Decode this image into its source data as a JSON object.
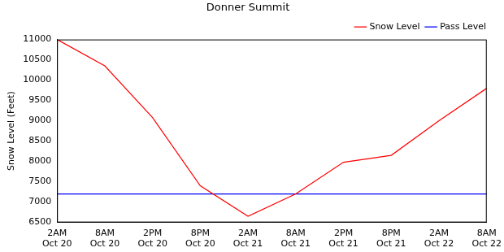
{
  "chart_data": {
    "type": "line",
    "title": "Donner Summit",
    "y_label": "Snow Level (Feet)",
    "categories": [
      "2AM\nOct 20",
      "8AM\nOct 20",
      "2PM\nOct 20",
      "8PM\nOct 20",
      "2AM\nOct 21",
      "8AM\nOct 21",
      "2PM\nOct 21",
      "8PM\nOct 21",
      "2AM\nOct 22",
      "8AM\nOct 22"
    ],
    "series": [
      {
        "name": "Snow Level",
        "color": "#ff0000",
        "values": [
          11000,
          10350,
          9080,
          7400,
          6650,
          7200,
          7980,
          8150,
          9000,
          9800
        ]
      },
      {
        "name": "Pass Level",
        "color": "#0000ff",
        "values": [
          7200,
          7200,
          7200,
          7200,
          7200,
          7200,
          7200,
          7200,
          7200,
          7200
        ]
      }
    ],
    "ylim": [
      6500,
      11000
    ],
    "yticks": [
      6500,
      7000,
      7500,
      8000,
      8500,
      9000,
      9500,
      10000,
      10500,
      11000
    ],
    "grid": false,
    "legend": "upper right"
  }
}
